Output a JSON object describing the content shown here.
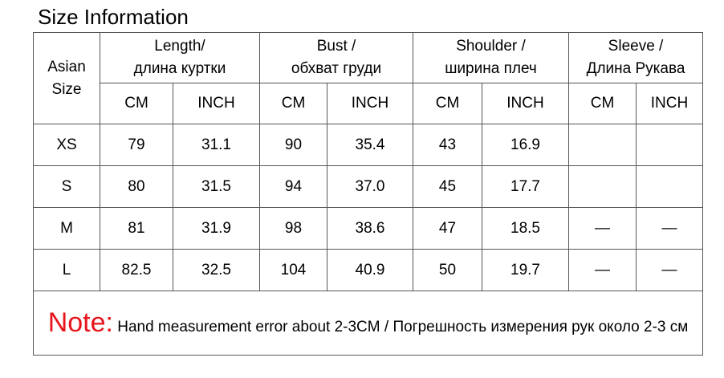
{
  "title": "Size Information",
  "table": {
    "corner": [
      "Asian",
      "Size"
    ],
    "groups": [
      [
        "Length/",
        "длина куртки"
      ],
      [
        "Bust /",
        "обхват груди"
      ],
      [
        "Shoulder /",
        "ширина плеч"
      ],
      [
        "Sleeve /",
        "Длина Рукава"
      ]
    ],
    "units": [
      "CM",
      "INCH",
      "CM",
      "INCH",
      "CM",
      "INCH",
      "CM",
      "INCH"
    ],
    "rows": [
      [
        "XS",
        "79",
        "31.1",
        "90",
        "35.4",
        "43",
        "16.9"
      ],
      [
        "S",
        "80",
        "31.5",
        "94",
        "37.0",
        "45",
        "17.7"
      ],
      [
        "M",
        "81",
        "31.9",
        "98",
        "38.6",
        "47",
        "18.5",
        "—",
        "—"
      ],
      [
        "L",
        "82.5",
        "32.5",
        "104",
        "40.9",
        "50",
        "19.7",
        "—",
        "—"
      ]
    ]
  },
  "note": {
    "label": "Note:",
    "text": "Hand measurement error about 2-3CM / Погрешность измерения рук около 2-3 см"
  }
}
